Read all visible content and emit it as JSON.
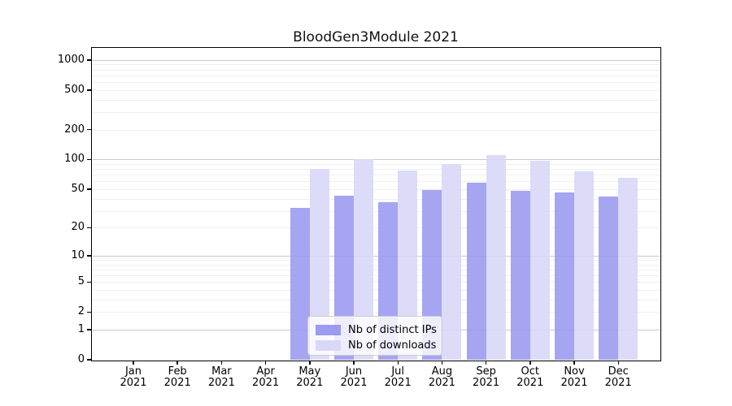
{
  "chart_data": {
    "type": "bar",
    "title": "BloodGen3Module 2021",
    "categories": [
      "Jan 2021",
      "Feb 2021",
      "Mar 2021",
      "Apr 2021",
      "May 2021",
      "Jun 2021",
      "Jul 2021",
      "Aug 2021",
      "Sep 2021",
      "Oct 2021",
      "Nov 2021",
      "Dec 2021"
    ],
    "series": [
      {
        "name": "Nb of distinct IPs",
        "color": "#9b9bef",
        "values": [
          0,
          0,
          0,
          0,
          32,
          43,
          37,
          49,
          58,
          48,
          46,
          42
        ]
      },
      {
        "name": "Nb of downloads",
        "color": "#d8d8f7",
        "values": [
          0,
          0,
          0,
          0,
          80,
          101,
          78,
          90,
          111,
          98,
          76,
          65
        ]
      }
    ],
    "y_scale": "log1p",
    "y_ticks": [
      1000,
      500,
      200,
      100,
      50,
      20,
      10,
      5,
      2,
      1,
      0
    ],
    "ylim": [
      0,
      1320
    ],
    "xlabel": "",
    "ylabel": "",
    "grid": true,
    "legend_position": "bottom-center",
    "style": {
      "background": "#ffffff",
      "spine_color": "#000000",
      "text_color": "#000000",
      "grid_major_color": "#c9c9c9",
      "grid_minor_color": "#efefef",
      "legend_border": "#cccccc"
    }
  }
}
